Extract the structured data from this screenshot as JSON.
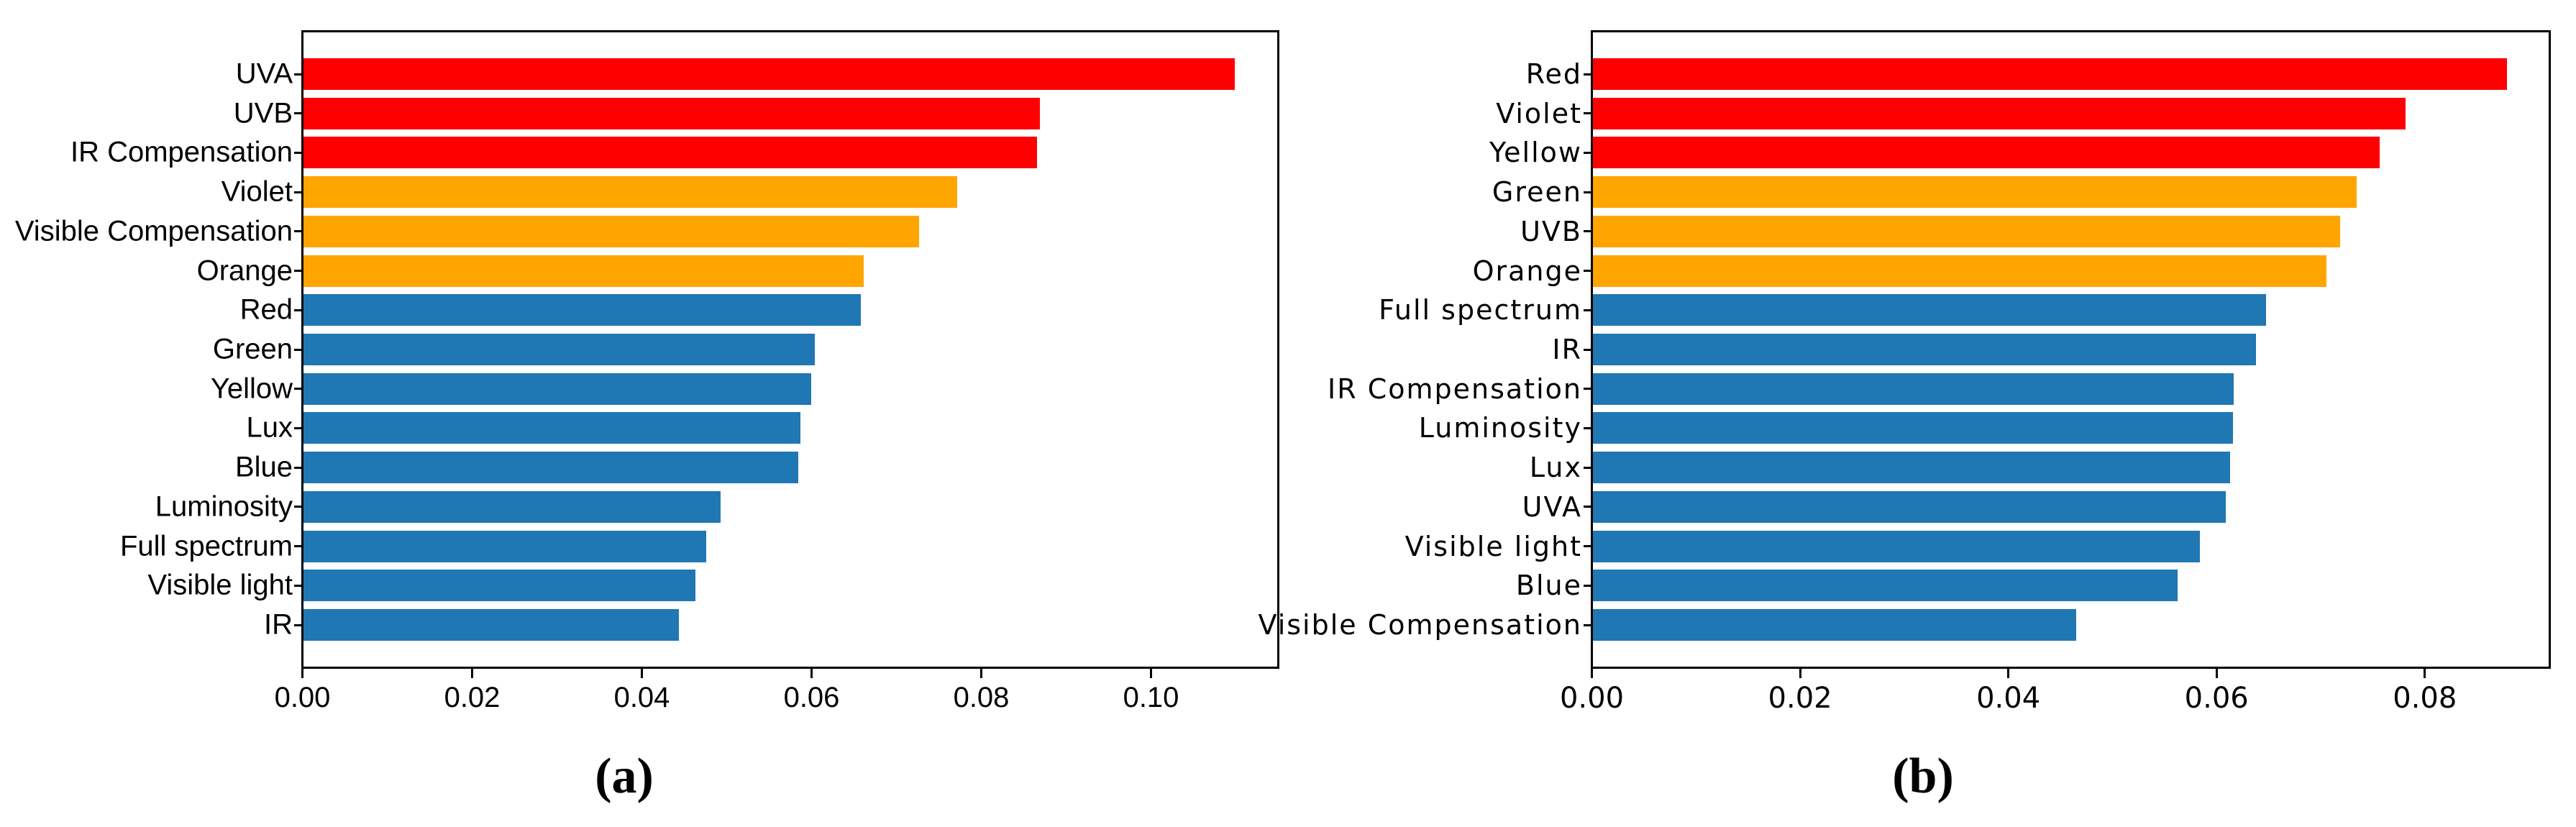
{
  "figure": {
    "background": "#ffffff",
    "palette": {
      "top_group": "#ff0000",
      "mid_group": "#ffa500",
      "base_group": "#1f77b4"
    }
  },
  "chart_data": [
    {
      "type": "bar",
      "orientation": "horizontal",
      "caption": "(a)",
      "title": "",
      "xlabel": "",
      "ylabel": "",
      "grid": false,
      "legend": null,
      "xlim": [
        0,
        0.115
      ],
      "xtick_values": [
        0,
        0.02,
        0.04,
        0.06,
        0.08,
        0.1
      ],
      "xtick_labels": [
        "0.00",
        "0.02",
        "0.04",
        "0.06",
        "0.08",
        "0.10"
      ],
      "categories": [
        "UVA",
        "UVB",
        "IR Compensation",
        "Violet",
        "Visible Compensation",
        "Orange",
        "Red",
        "Green",
        "Yellow",
        "Lux",
        "Blue",
        "Luminosity",
        "Full spectrum",
        "Visible light",
        "IR"
      ],
      "values": [
        0.11,
        0.087,
        0.0866,
        0.0772,
        0.0727,
        0.0662,
        0.0658,
        0.0604,
        0.06,
        0.0587,
        0.0584,
        0.0493,
        0.0476,
        0.0463,
        0.0443
      ],
      "bar_colors": [
        "#ff0000",
        "#ff0000",
        "#ff0000",
        "#ffa500",
        "#ffa500",
        "#ffa500",
        "#1f77b4",
        "#1f77b4",
        "#1f77b4",
        "#1f77b4",
        "#1f77b4",
        "#1f77b4",
        "#1f77b4",
        "#1f77b4",
        "#1f77b4"
      ]
    },
    {
      "type": "bar",
      "orientation": "horizontal",
      "caption": "(b)",
      "title": "",
      "xlabel": "",
      "ylabel": "",
      "grid": false,
      "legend": null,
      "xlim": [
        0,
        0.092
      ],
      "xtick_values": [
        0,
        0.02,
        0.04,
        0.06,
        0.08
      ],
      "xtick_labels": [
        "0.00",
        "0.02",
        "0.04",
        "0.06",
        "0.08"
      ],
      "categories": [
        "Red",
        "Violet",
        "Yellow",
        "Green",
        "UVB",
        "Orange",
        "Full spectrum",
        "IR",
        "IR Compensation",
        "Luminosity",
        "Lux",
        "UVA",
        "Visible light",
        "Blue",
        "Visible Compensation"
      ],
      "values": [
        0.088,
        0.0782,
        0.0757,
        0.0735,
        0.0719,
        0.0706,
        0.0648,
        0.0638,
        0.0617,
        0.0616,
        0.0613,
        0.0609,
        0.0584,
        0.0563,
        0.0465
      ],
      "bar_colors": [
        "#ff0000",
        "#ff0000",
        "#ff0000",
        "#ffa500",
        "#ffa500",
        "#ffa500",
        "#1f77b4",
        "#1f77b4",
        "#1f77b4",
        "#1f77b4",
        "#1f77b4",
        "#1f77b4",
        "#1f77b4",
        "#1f77b4",
        "#1f77b4"
      ]
    }
  ]
}
